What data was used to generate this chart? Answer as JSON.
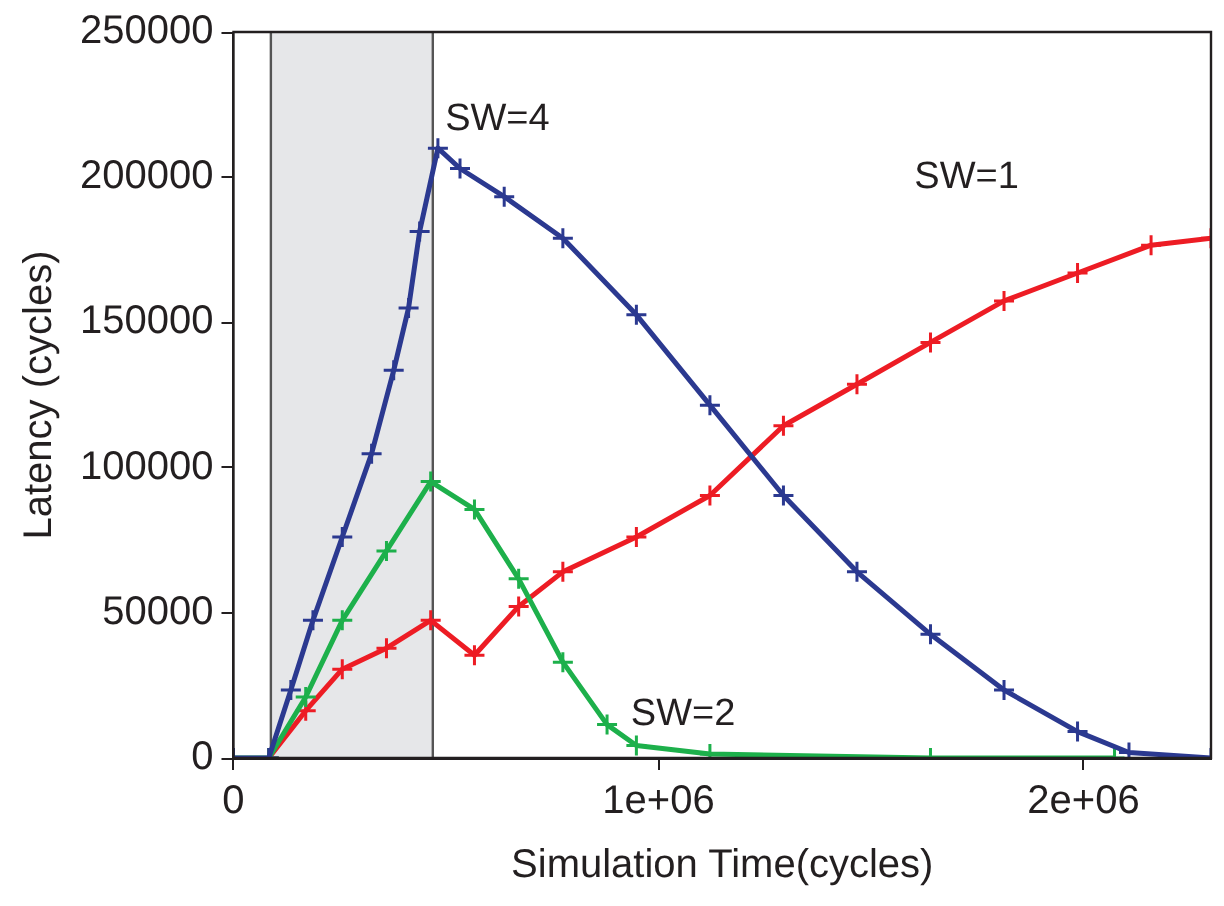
{
  "chart_data": {
    "type": "line",
    "xlabel": "Simulation Time(cycles)",
    "ylabel": "Latency (cycles)",
    "xlim": [
      0,
      2300000
    ],
    "xticks": [
      0,
      {
        "value": 1000000,
        "label": "1e+06"
      },
      {
        "value": 2000000,
        "label": "2e+06"
      }
    ],
    "ylim": [
      0,
      250000
    ],
    "yticks": [
      0,
      50000,
      100000,
      150000,
      200000,
      250000
    ],
    "grid": false,
    "marker": "cross",
    "bands": [
      {
        "axis": "x",
        "from": 88000,
        "to": 469000,
        "color": "#e6e7e9"
      }
    ],
    "ref_lines": [
      {
        "axis": "x",
        "value": 88000,
        "color": "#555555"
      },
      {
        "axis": "x",
        "value": 469000,
        "color": "#555555"
      }
    ],
    "series": [
      {
        "name": "SW=4",
        "color": "#2b3990",
        "x": [
          0,
          83000,
          135000,
          187000,
          256000,
          325000,
          377000,
          412000,
          438000,
          481000,
          533000,
          637000,
          775000,
          948000,
          1121000,
          1294000,
          1467000,
          1640000,
          1813000,
          1986000,
          2107000,
          2300000
        ],
        "values": [
          0,
          0,
          23400,
          47400,
          76100,
          104800,
          133500,
          155000,
          181300,
          210000,
          203000,
          193300,
          179000,
          152600,
          121500,
          90400,
          64100,
          42600,
          23400,
          9100,
          1900,
          0
        ]
      },
      {
        "name": "SW=2",
        "color": "#1db04b",
        "x": [
          0,
          83000,
          170000,
          256000,
          360000,
          464000,
          567000,
          671000,
          775000,
          879000,
          948000,
          1121000,
          1640000,
          2073000
        ],
        "values": [
          0,
          0,
          21000,
          47400,
          71300,
          95200,
          85600,
          61700,
          33000,
          11500,
          4300,
          1400,
          0,
          0
        ]
      },
      {
        "name": "SW=1",
        "color": "#ed1c24",
        "x": [
          83000,
          170000,
          256000,
          360000,
          464000,
          567000,
          671000,
          775000,
          948000,
          1121000,
          1294000,
          1467000,
          1640000,
          1813000,
          1986000,
          2159000,
          2300000
        ],
        "values": [
          0,
          16300,
          30600,
          37800,
          47400,
          35400,
          52200,
          64100,
          76100,
          90400,
          114400,
          128700,
          143100,
          157400,
          167000,
          176600,
          179000
        ]
      }
    ]
  }
}
